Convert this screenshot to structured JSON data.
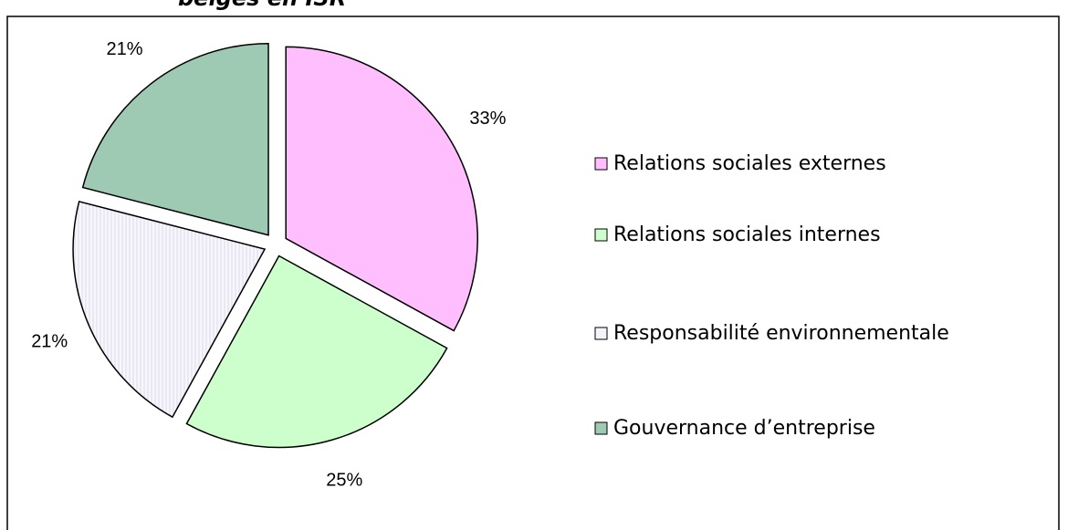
{
  "chart_data": {
    "type": "pie",
    "title": "belges en ISR",
    "categories": [
      "Relations sociales externes",
      "Relations sociales internes",
      "Responsabilité environnementale",
      "Gouvernance d’entreprise"
    ],
    "values": [
      33,
      25,
      21,
      21
    ],
    "value_labels": [
      "33%",
      "25%",
      "21%",
      "21%"
    ],
    "colors": [
      "#ffbfff",
      "#ccffcc",
      "#f4f4fb",
      "#9ecab3"
    ],
    "legend": "right"
  }
}
